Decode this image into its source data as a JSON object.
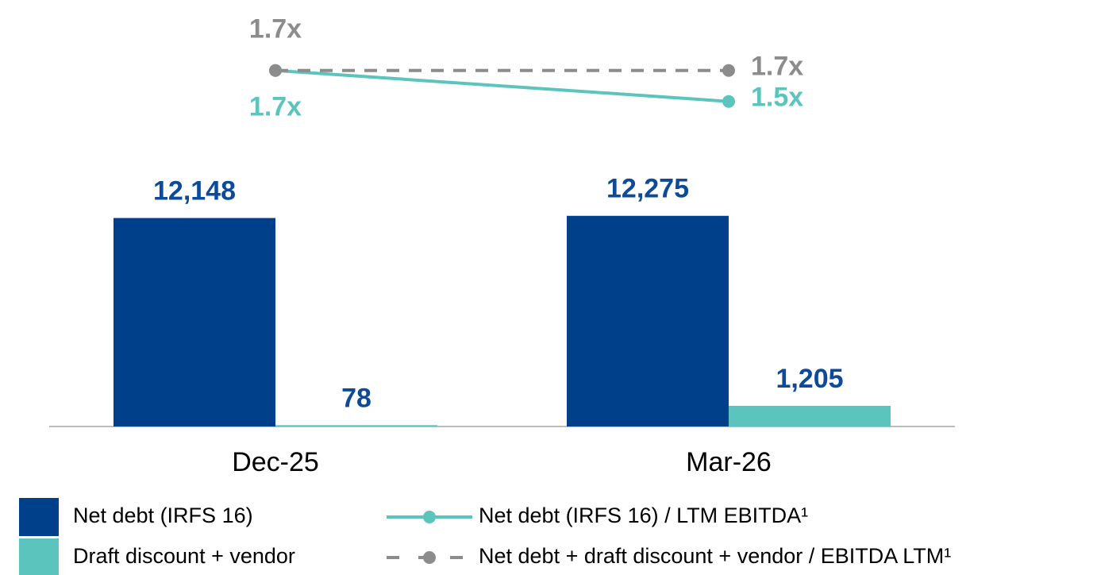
{
  "chart_data": {
    "type": "bar",
    "categories": [
      "Dec-25",
      "Mar-26"
    ],
    "series": [
      {
        "name": "Net debt (IRFS 16)",
        "color": "#003f8a",
        "values": [
          12148,
          12275
        ],
        "value_labels": [
          "12,148",
          "12,275"
        ]
      },
      {
        "name": "Draft discount + vendor",
        "color": "#5bc5bd",
        "values": [
          78,
          1205
        ],
        "value_labels": [
          "78",
          "1,205"
        ]
      },
      {
        "name": "Net debt (IRFS 16) / LTM EBITDA¹",
        "type": "line",
        "axis": "y2",
        "color": "#5bc5bd",
        "values": [
          1.7,
          1.5
        ],
        "value_labels": [
          "1.7x",
          "1.5x"
        ]
      },
      {
        "name": "Net debt + draft discount + vendor / EBITDA LTM¹",
        "type": "line",
        "axis": "y2",
        "dashed": true,
        "color": "#8c8c8c",
        "values": [
          1.7,
          1.7
        ],
        "value_labels": [
          "1.7x",
          "1.7x"
        ]
      }
    ],
    "value_label_color": "#0d4a99",
    "ylim": [
      0,
      23000
    ],
    "y2lim": [
      -0.6,
      1.95
    ],
    "grid": false
  }
}
